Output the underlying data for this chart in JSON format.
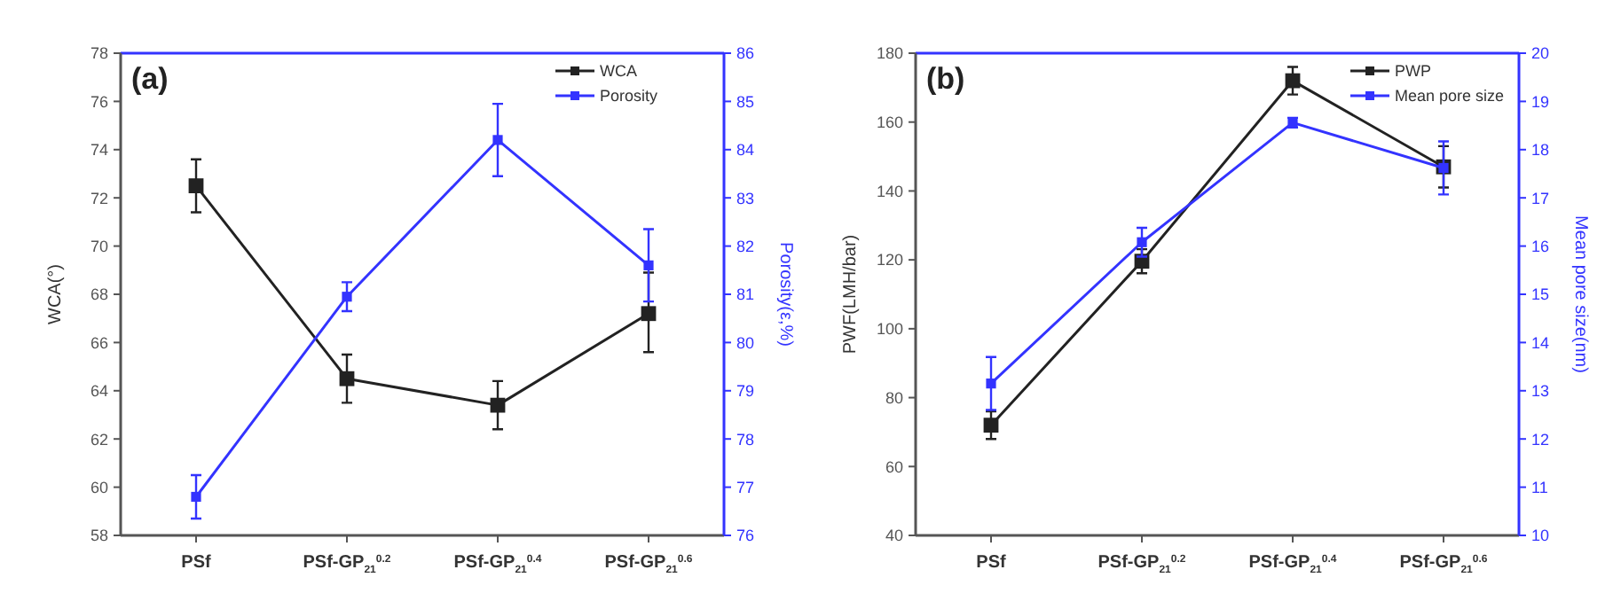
{
  "chart_data": [
    {
      "type": "line",
      "annotations": [
        "(a)"
      ],
      "ylabel": "WCA(°)",
      "y2label": "Porosity(ε,%)",
      "categories": [
        "PSf",
        "PSf-GP$_{21}$$^{0.2}$",
        "PSf-GP$_{21}$$^{0.4}$",
        "PSf-GP$_{21}$$^{0.6}$"
      ],
      "ylim": [
        58,
        78
      ],
      "yticks": [
        58,
        60,
        62,
        64,
        66,
        68,
        70,
        72,
        74,
        76,
        78
      ],
      "y2lim": [
        76,
        86
      ],
      "y2ticks": [
        76,
        77,
        78,
        79,
        80,
        81,
        82,
        83,
        84,
        85,
        86
      ],
      "legend": "top right",
      "marker": "square",
      "series": [
        {
          "name": "WCA",
          "color": "#222222",
          "values": [
            72.5,
            64.5,
            63.4,
            67.2
          ],
          "errors": [
            1.1,
            1,
            1,
            [
              65.6,
              68.9
            ]
          ]
        },
        {
          "name": "Porosity",
          "color": "#3333ff",
          "axis": "y2",
          "values": [
            76.8,
            80.95,
            84.2,
            81.6
          ],
          "errors": [
            0.45,
            0.3,
            0.75,
            0.75
          ]
        }
      ]
    },
    {
      "type": "line",
      "annotations": [
        "(b)"
      ],
      "ylabel": "PWF(LMH/bar)",
      "y2label": "Mean pore size(nm)",
      "categories": [
        "PSf",
        "PSf-GP$_{21}$$^{0.2}$",
        "PSf-GP$_{21}$$^{0.4}$",
        "PSf-GP$_{21}$$^{0.6}$"
      ],
      "ylim": [
        40,
        180
      ],
      "yticks": [
        40,
        60,
        80,
        100,
        120,
        140,
        160,
        180
      ],
      "y2lim": [
        10,
        20
      ],
      "y2ticks": [
        10,
        11,
        12,
        13,
        14,
        15,
        16,
        17,
        18,
        19,
        20
      ],
      "legend": "top right",
      "marker": "square",
      "series": [
        {
          "name": "PWP",
          "color": "#222222",
          "values": [
            72,
            119.6,
            172,
            147
          ],
          "errors": [
            4,
            3.5,
            4,
            6
          ]
        },
        {
          "name": "Mean pore size",
          "color": "#3333ff",
          "axis": "y2",
          "values": [
            13.15,
            16.08,
            18.56,
            17.62
          ],
          "errors": [
            0.55,
            0.3,
            0.1,
            0.55
          ]
        }
      ]
    }
  ]
}
